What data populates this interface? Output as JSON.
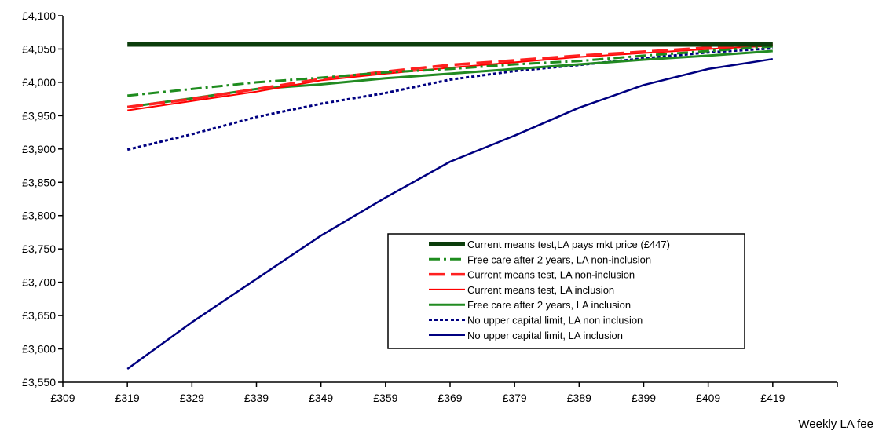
{
  "chart_data": {
    "type": "line",
    "xlabel": "Weekly LA fee",
    "ylabel": "",
    "x_ticks": [
      "£309",
      "£319",
      "£329",
      "£339",
      "£349",
      "£359",
      "£369",
      "£379",
      "£389",
      "£399",
      "£409",
      "£419"
    ],
    "xlim": [
      309,
      429
    ],
    "ylim": [
      3550,
      4100
    ],
    "y_ticks": [
      "£3,550",
      "£3,600",
      "£3,650",
      "£3,700",
      "£3,750",
      "£3,800",
      "£3,850",
      "£3,900",
      "£3,950",
      "£4,000",
      "£4,050",
      "£4,100"
    ],
    "x": [
      319,
      329,
      339,
      349,
      359,
      369,
      379,
      389,
      399,
      409,
      419
    ],
    "legend_position": "lower-right",
    "grid": false,
    "series": [
      {
        "name": "Current means test,LA pays mkt price (£447)",
        "color": "#0b3d0b",
        "style": "solid",
        "width": 6,
        "values": [
          4057,
          4057,
          4057,
          4057,
          4057,
          4057,
          4057,
          4057,
          4057,
          4057,
          4057
        ]
      },
      {
        "name": "Free care after 2 years, LA non-inclusion",
        "color": "#1e8c1e",
        "style": "dashdot",
        "width": 3,
        "values": [
          3980,
          3990,
          4000,
          4007,
          4015,
          4020,
          4027,
          4032,
          4040,
          4047,
          4054
        ]
      },
      {
        "name": "Current means test, LA non-inclusion",
        "color": "#ff2020",
        "style": "longdash",
        "width": 3.5,
        "values": [
          3963,
          3975,
          3990,
          4005,
          4016,
          4026,
          4033,
          4040,
          4046,
          4052,
          4057
        ]
      },
      {
        "name": "Current means test, LA inclusion",
        "color": "#ff0000",
        "style": "solid",
        "width": 2,
        "values": [
          3958,
          3972,
          3986,
          4003,
          4013,
          4022,
          4030,
          4038,
          4044,
          4050,
          4055
        ]
      },
      {
        "name": "Free care after 2 years, LA inclusion",
        "color": "#228b22",
        "style": "solid",
        "width": 3,
        "values": [
          3963,
          3976,
          3990,
          3997,
          4006,
          4013,
          4020,
          4027,
          4034,
          4040,
          4047
        ]
      },
      {
        "name": "No upper capital limit, LA non inclusion",
        "color": "#000080",
        "style": "dotted",
        "width": 3,
        "values": [
          3899,
          3922,
          3948,
          3968,
          3984,
          4004,
          4017,
          4026,
          4036,
          4045,
          4051
        ]
      },
      {
        "name": "No upper capital limit, LA inclusion",
        "color": "#000080",
        "style": "solid",
        "width": 2.5,
        "values": [
          3570,
          3640,
          3705,
          3770,
          3827,
          3881,
          3920,
          3962,
          3996,
          4020,
          4035
        ]
      }
    ]
  }
}
